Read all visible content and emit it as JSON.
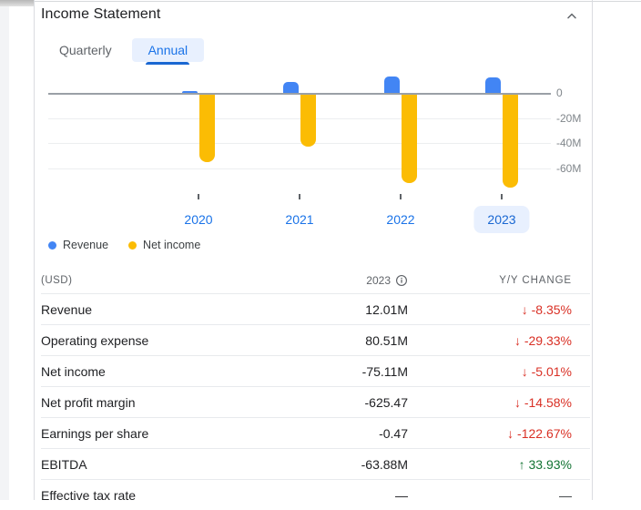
{
  "header": {
    "title": "Income Statement"
  },
  "tabs": [
    {
      "label": "Quarterly",
      "selected": false
    },
    {
      "label": "Annual",
      "selected": true
    }
  ],
  "colors": {
    "revenue": "#4285f4",
    "net_income": "#fbbc04",
    "negative": "#d93025",
    "positive": "#137333",
    "accent_blue": "#1a73e8",
    "selected_bg": "#e8f0fe"
  },
  "chart_data": {
    "type": "bar",
    "categories": [
      "2020",
      "2021",
      "2022",
      "2023"
    ],
    "selected_category": "2023",
    "series": [
      {
        "name": "Revenue",
        "color": "#4285f4",
        "values": [
          1.5,
          8.7,
          13.11,
          12.01
        ]
      },
      {
        "name": "Net income",
        "color": "#fbbc04",
        "values": [
          -55,
          -43,
          -71.5,
          -75.11
        ]
      }
    ],
    "unit": "M USD",
    "y_ticks": [
      {
        "label": "0",
        "value": 0
      },
      {
        "label": "-20M",
        "value": -20
      },
      {
        "label": "-40M",
        "value": -40
      },
      {
        "label": "-60M",
        "value": -60
      }
    ],
    "ylim": [
      -80,
      17
    ],
    "grid": true,
    "legend_position": "bottom-left"
  },
  "table": {
    "columns": [
      "(USD)",
      "2023",
      "Y/Y CHANGE"
    ],
    "rows": [
      {
        "label": "Revenue",
        "value": "12.01M",
        "change": "-8.35%",
        "direction": "down"
      },
      {
        "label": "Operating expense",
        "value": "80.51M",
        "change": "-29.33%",
        "direction": "down"
      },
      {
        "label": "Net income",
        "value": "-75.11M",
        "change": "-5.01%",
        "direction": "down"
      },
      {
        "label": "Net profit margin",
        "value": "-625.47",
        "change": "-14.58%",
        "direction": "down"
      },
      {
        "label": "Earnings per share",
        "value": "-0.47",
        "change": "-122.67%",
        "direction": "down"
      },
      {
        "label": "EBITDA",
        "value": "-63.88M",
        "change": "33.93%",
        "direction": "up"
      },
      {
        "label": "Effective tax rate",
        "value": "—",
        "change": "—",
        "direction": "none"
      }
    ]
  }
}
